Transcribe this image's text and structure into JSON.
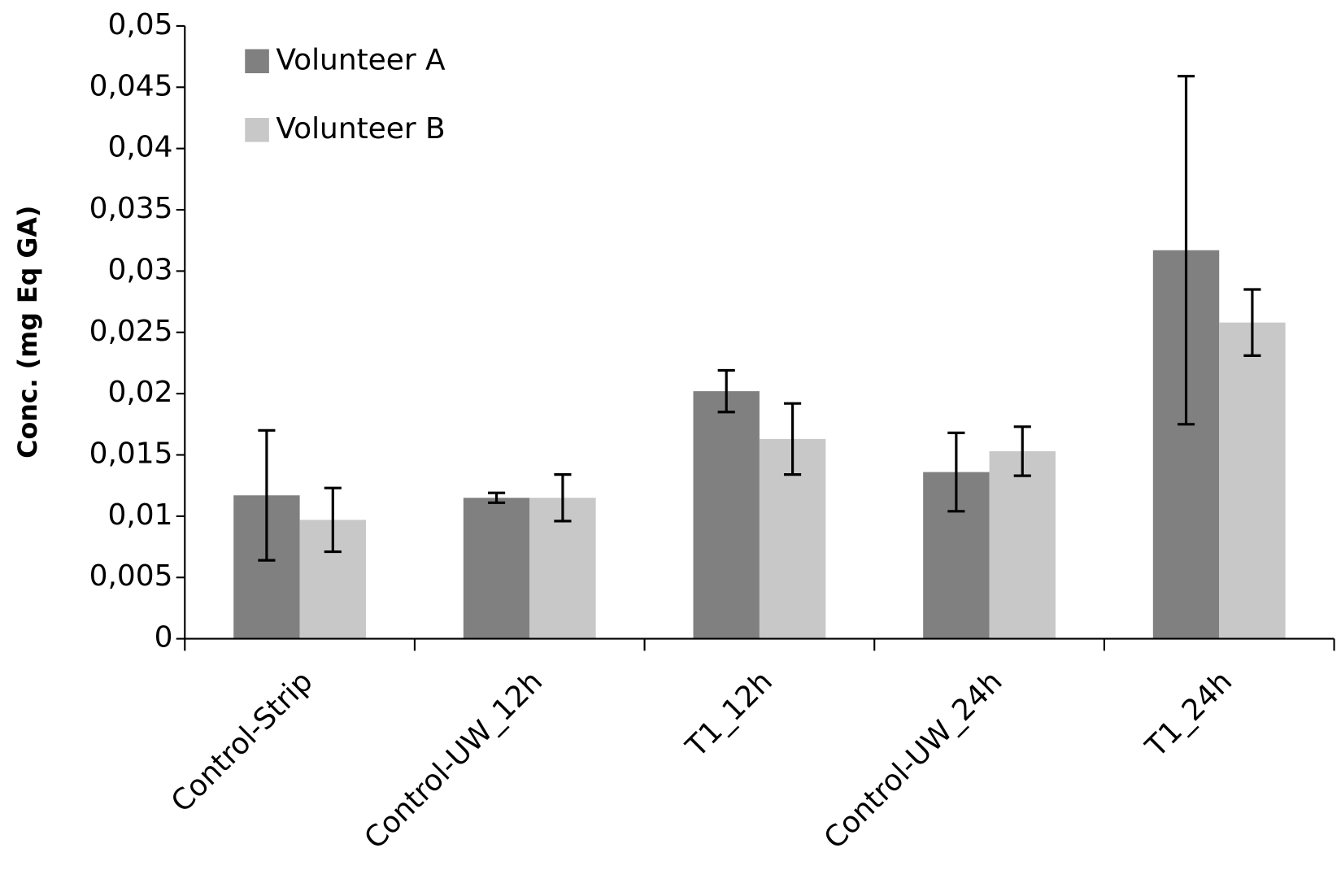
{
  "chart_data": {
    "type": "bar",
    "y_label": "Conc. (mg Eq GA)",
    "categories": [
      "Control-Strip",
      "Control-UW_12h",
      "T1_12h",
      "Control-UW_24h",
      "T1_24h"
    ],
    "series": [
      {
        "name": "Volunteer A",
        "color": "#808080",
        "values": [
          0.0117,
          0.0115,
          0.0202,
          0.0136,
          0.0317
        ],
        "errors": [
          0.0053,
          0.0004,
          0.0017,
          0.0032,
          0.0142
        ]
      },
      {
        "name": "Volunteer B",
        "color": "#c8c8c8",
        "values": [
          0.0097,
          0.0115,
          0.0163,
          0.0153,
          0.0258
        ],
        "errors": [
          0.0026,
          0.0019,
          0.0029,
          0.002,
          0.0027
        ]
      }
    ],
    "ylim": [
      0,
      0.05
    ],
    "yticks": [
      0,
      {
        "value": 0.005,
        "label": "0,005"
      },
      {
        "value": 0.01,
        "label": "0,01"
      },
      {
        "value": 0.015,
        "label": "0,015"
      },
      {
        "value": 0.02,
        "label": "0,02"
      },
      {
        "value": 0.025,
        "label": "0,025"
      },
      {
        "value": 0.03,
        "label": "0,03"
      },
      {
        "value": 0.035,
        "label": "0,035"
      },
      {
        "value": 0.04,
        "label": "0,04"
      },
      {
        "value": 0.045,
        "label": "0,045"
      },
      {
        "value": 0.05,
        "label": "0,05"
      }
    ],
    "legend": "top-left",
    "grid": false
  }
}
